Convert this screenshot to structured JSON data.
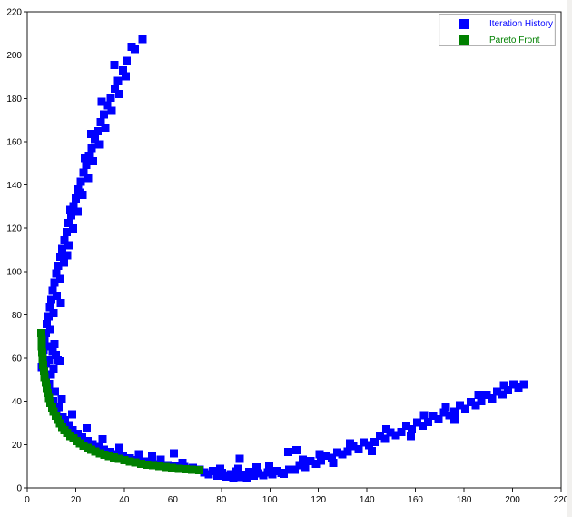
{
  "legend": {
    "items": [
      {
        "label": "Iteration History",
        "color": "#0000ff"
      },
      {
        "label": "Pareto Front",
        "color": "#008000"
      }
    ]
  },
  "chart_data": {
    "type": "scatter",
    "title": "",
    "xlabel": "",
    "ylabel": "",
    "xlim": [
      0,
      220
    ],
    "ylim": [
      0,
      220
    ],
    "xticks": [
      0,
      20,
      40,
      60,
      80,
      100,
      120,
      140,
      160,
      180,
      200,
      220
    ],
    "yticks": [
      0,
      20,
      40,
      60,
      80,
      100,
      120,
      140,
      160,
      180,
      200,
      220
    ],
    "grid": false,
    "legend_position": "top-right",
    "frame_color": "#1a1a1a",
    "series": [
      {
        "name": "Iteration History",
        "color": "#0000ff",
        "marker": "square",
        "points": [
          [
            47.6,
            207.5
          ],
          [
            44.3,
            202.8
          ],
          [
            43.1,
            203.9
          ],
          [
            41.0,
            197.4
          ],
          [
            39.5,
            193.0
          ],
          [
            40.6,
            190.2
          ],
          [
            37.4,
            188.1
          ],
          [
            36.1,
            184.6
          ],
          [
            37.9,
            182.0
          ],
          [
            34.4,
            180.3
          ],
          [
            33.0,
            176.8
          ],
          [
            34.8,
            174.2
          ],
          [
            31.6,
            172.6
          ],
          [
            30.3,
            169.0
          ],
          [
            32.1,
            166.5
          ],
          [
            29.0,
            164.8
          ],
          [
            27.8,
            161.2
          ],
          [
            29.6,
            158.7
          ],
          [
            26.6,
            157.0
          ],
          [
            25.4,
            153.4
          ],
          [
            27.2,
            150.9
          ],
          [
            24.3,
            149.2
          ],
          [
            23.2,
            145.6
          ],
          [
            25.0,
            143.1
          ],
          [
            22.1,
            141.5
          ],
          [
            21.0,
            137.9
          ],
          [
            22.9,
            135.3
          ],
          [
            20.0,
            133.7
          ],
          [
            19.0,
            130.1
          ],
          [
            20.8,
            127.6
          ],
          [
            18.1,
            125.9
          ],
          [
            17.1,
            122.3
          ],
          [
            18.9,
            119.8
          ],
          [
            16.2,
            118.1
          ],
          [
            15.3,
            114.5
          ],
          [
            17.0,
            112.0
          ],
          [
            14.4,
            110.4
          ],
          [
            13.6,
            106.8
          ],
          [
            15.2,
            104.2
          ],
          [
            12.8,
            102.6
          ],
          [
            12.0,
            99.0
          ],
          [
            13.6,
            96.5
          ],
          [
            11.2,
            94.8
          ],
          [
            10.5,
            91.2
          ],
          [
            12.1,
            88.7
          ],
          [
            9.9,
            87.0
          ],
          [
            9.3,
            83.5
          ],
          [
            10.8,
            80.9
          ],
          [
            8.7,
            79.3
          ],
          [
            8.1,
            75.7
          ],
          [
            9.6,
            73.1
          ],
          [
            7.6,
            71.5
          ],
          [
            7.1,
            67.9
          ],
          [
            8.5,
            65.4
          ],
          [
            6.7,
            63.7
          ],
          [
            6.3,
            60.1
          ],
          [
            7.7,
            57.6
          ],
          [
            6.0,
            55.9
          ],
          [
            35.9,
            195.5
          ],
          [
            30.7,
            178.5
          ],
          [
            26.4,
            163.5
          ],
          [
            23.8,
            152.5
          ],
          [
            21.5,
            136.5
          ],
          [
            17.7,
            128.5
          ],
          [
            16.4,
            107.5
          ],
          [
            13.9,
            85.5
          ],
          [
            11.3,
            66.5
          ],
          [
            9.0,
            59.0
          ],
          [
            11.8,
            61.5
          ],
          [
            13.5,
            58.5
          ],
          [
            10.4,
            63.0
          ],
          [
            10.9,
            55.0
          ],
          [
            12.6,
            59.0
          ],
          [
            9.8,
            52.5
          ],
          [
            8.9,
            48.0
          ],
          [
            11.4,
            44.6
          ],
          [
            10.6,
            40.2
          ],
          [
            12.9,
            37.4
          ],
          [
            12.0,
            35.6
          ],
          [
            14.6,
            33.0
          ],
          [
            13.8,
            30.5
          ],
          [
            16.3,
            28.3
          ],
          [
            15.5,
            31.2
          ],
          [
            17.9,
            26.1
          ],
          [
            17.0,
            28.9
          ],
          [
            19.8,
            24.2
          ],
          [
            18.8,
            26.6
          ],
          [
            21.8,
            22.4
          ],
          [
            20.7,
            25.0
          ],
          [
            23.9,
            20.8
          ],
          [
            22.7,
            23.3
          ],
          [
            26.1,
            19.4
          ],
          [
            24.8,
            21.7
          ],
          [
            28.4,
            18.1
          ],
          [
            27.0,
            20.2
          ],
          [
            30.8,
            16.9
          ],
          [
            29.3,
            18.9
          ],
          [
            33.3,
            15.8
          ],
          [
            31.7,
            17.7
          ],
          [
            35.9,
            14.8
          ],
          [
            34.2,
            16.6
          ],
          [
            38.6,
            13.9
          ],
          [
            36.8,
            15.5
          ],
          [
            41.4,
            13.1
          ],
          [
            39.5,
            14.6
          ],
          [
            44.3,
            12.3
          ],
          [
            42.3,
            13.7
          ],
          [
            47.3,
            11.7
          ],
          [
            45.2,
            12.9
          ],
          [
            50.4,
            11.1
          ],
          [
            48.2,
            12.2
          ],
          [
            53.6,
            10.5
          ],
          [
            51.3,
            11.5
          ],
          [
            56.9,
            10.0
          ],
          [
            54.5,
            11.0
          ],
          [
            60.3,
            9.6
          ],
          [
            57.8,
            10.5
          ],
          [
            63.8,
            9.2
          ],
          [
            61.2,
            10.0
          ],
          [
            67.4,
            8.8
          ],
          [
            64.7,
            9.6
          ],
          [
            71.1,
            8.5
          ],
          [
            68.3,
            9.3
          ],
          [
            14.2,
            41.0
          ],
          [
            18.5,
            34.0
          ],
          [
            24.5,
            27.5
          ],
          [
            31.0,
            22.5
          ],
          [
            38.0,
            18.5
          ],
          [
            46.0,
            15.5
          ],
          [
            55.0,
            13.0
          ],
          [
            64.0,
            11.5
          ],
          [
            60.5,
            16.0
          ],
          [
            51.5,
            14.5
          ],
          [
            73.0,
            7.2
          ],
          [
            74.8,
            6.3
          ],
          [
            76.6,
            7.8
          ],
          [
            78.4,
            5.6
          ],
          [
            80.2,
            6.9
          ],
          [
            82.0,
            5.2
          ],
          [
            83.9,
            6.4
          ],
          [
            85.8,
            7.6
          ],
          [
            87.7,
            5.0
          ],
          [
            89.6,
            6.1
          ],
          [
            91.5,
            7.3
          ],
          [
            93.4,
            5.6
          ],
          [
            95.3,
            6.8
          ],
          [
            97.2,
            5.9
          ],
          [
            99.1,
            7.1
          ],
          [
            101.0,
            6.3
          ],
          [
            102.9,
            7.7
          ],
          [
            104.8,
            6.9
          ],
          [
            87.0,
            8.9
          ],
          [
            94.5,
            9.4
          ],
          [
            79.5,
            8.8
          ],
          [
            99.8,
            9.9
          ],
          [
            84.9,
            4.7
          ],
          [
            90.6,
            4.9
          ],
          [
            87.5,
            13.5
          ],
          [
            107.5,
            16.5
          ],
          [
            105.7,
            6.6
          ],
          [
            107.9,
            8.5
          ],
          [
            110.1,
            8.3
          ],
          [
            112.3,
            10.6
          ],
          [
            114.5,
            9.6
          ],
          [
            116.7,
            12.4
          ],
          [
            118.9,
            11.2
          ],
          [
            121.1,
            12.6
          ],
          [
            123.3,
            15.0
          ],
          [
            125.5,
            13.8
          ],
          [
            127.7,
            16.3
          ],
          [
            129.9,
            15.5
          ],
          [
            132.1,
            16.8
          ],
          [
            134.3,
            19.4
          ],
          [
            136.5,
            17.9
          ],
          [
            138.7,
            21.0
          ],
          [
            140.9,
            19.7
          ],
          [
            143.1,
            21.3
          ],
          [
            145.3,
            24.1
          ],
          [
            147.5,
            22.6
          ],
          [
            149.7,
            25.7
          ],
          [
            151.9,
            24.3
          ],
          [
            154.1,
            25.8
          ],
          [
            156.3,
            28.7
          ],
          [
            158.5,
            27.1
          ],
          [
            160.7,
            30.2
          ],
          [
            162.9,
            28.8
          ],
          [
            165.1,
            30.5
          ],
          [
            167.3,
            33.3
          ],
          [
            169.5,
            31.8
          ],
          [
            171.7,
            34.9
          ],
          [
            173.9,
            33.5
          ],
          [
            176.1,
            35.3
          ],
          [
            178.3,
            38.2
          ],
          [
            180.5,
            36.6
          ],
          [
            182.7,
            39.7
          ],
          [
            184.9,
            38.3
          ],
          [
            187.1,
            40.1
          ],
          [
            189.3,
            43.0
          ],
          [
            191.5,
            41.4
          ],
          [
            193.7,
            44.6
          ],
          [
            195.9,
            43.3
          ],
          [
            198.1,
            45.2
          ],
          [
            200.3,
            47.8
          ],
          [
            202.5,
            46.4
          ],
          [
            204.7,
            47.9
          ],
          [
            111.0,
            17.5
          ],
          [
            113.5,
            13.0
          ],
          [
            120.5,
            15.5
          ],
          [
            133.0,
            20.5
          ],
          [
            148.0,
            27.0
          ],
          [
            163.5,
            33.5
          ],
          [
            172.5,
            37.5
          ],
          [
            186.0,
            43.0
          ],
          [
            196.5,
            47.5
          ],
          [
            126.0,
            11.5
          ],
          [
            142.0,
            17.0
          ],
          [
            158.0,
            24.0
          ],
          [
            176.0,
            31.5
          ]
        ]
      },
      {
        "name": "Pareto Front",
        "color": "#008000",
        "marker": "square",
        "points": [
          [
            5.8,
            71.5
          ],
          [
            5.9,
            68.5
          ],
          [
            6.0,
            65.5
          ],
          [
            6.2,
            62.5
          ],
          [
            6.4,
            59.5
          ],
          [
            6.6,
            56.8
          ],
          [
            6.9,
            54.0
          ],
          [
            7.2,
            51.3
          ],
          [
            7.6,
            48.7
          ],
          [
            8.0,
            46.2
          ],
          [
            8.5,
            43.8
          ],
          [
            9.0,
            41.5
          ],
          [
            9.6,
            39.3
          ],
          [
            10.2,
            37.2
          ],
          [
            10.9,
            35.2
          ],
          [
            11.7,
            33.3
          ],
          [
            12.5,
            31.5
          ],
          [
            13.4,
            29.8
          ],
          [
            14.4,
            28.2
          ],
          [
            15.4,
            26.7
          ],
          [
            16.5,
            25.3
          ],
          [
            17.7,
            24.0
          ],
          [
            19.0,
            22.8
          ],
          [
            20.3,
            21.6
          ],
          [
            21.7,
            20.5
          ],
          [
            23.2,
            19.5
          ],
          [
            24.8,
            18.5
          ],
          [
            26.4,
            17.6
          ],
          [
            28.1,
            16.8
          ],
          [
            29.9,
            16.0
          ],
          [
            31.8,
            15.3
          ],
          [
            33.7,
            14.6
          ],
          [
            35.7,
            14.0
          ],
          [
            37.8,
            13.4
          ],
          [
            40.0,
            12.8
          ],
          [
            42.2,
            12.2
          ],
          [
            44.5,
            11.7
          ],
          [
            46.9,
            11.2
          ],
          [
            49.3,
            10.8
          ],
          [
            51.8,
            10.4
          ],
          [
            54.4,
            10.0
          ],
          [
            57.0,
            9.6
          ],
          [
            59.7,
            9.2
          ],
          [
            62.4,
            8.9
          ],
          [
            65.2,
            8.6
          ],
          [
            68.0,
            8.3
          ],
          [
            70.9,
            8.1
          ]
        ]
      }
    ]
  }
}
